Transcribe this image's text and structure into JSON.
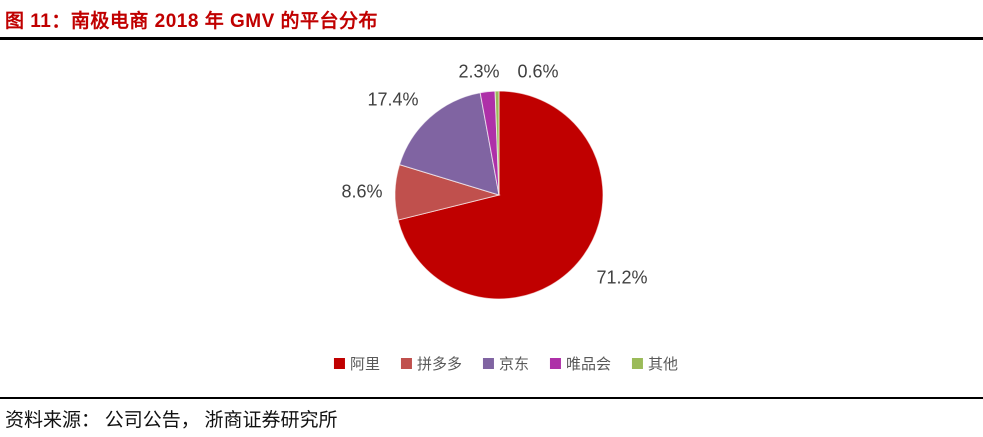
{
  "header": {
    "title": "图 11：南极电商 2018 年 GMV 的平台分布"
  },
  "chart_data": {
    "type": "pie",
    "title": "南极电商 2018 年 GMV 的平台分布",
    "categories": [
      "阿里",
      "拼多多",
      "京东",
      "唯品会",
      "其他"
    ],
    "values": [
      71.2,
      8.6,
      17.4,
      2.3,
      0.6
    ],
    "unit": "%",
    "labels": [
      "71.2%",
      "8.6%",
      "17.4%",
      "2.3%",
      "0.6%"
    ],
    "colors": [
      "#C00000",
      "#C0504D",
      "#8064A2",
      "#AE30A8",
      "#9BBB59"
    ],
    "start_angle_deg": 0,
    "direction": "clockwise",
    "legend_position": "bottom",
    "label_color": "#404040",
    "legend_text_color": "#595959",
    "accent_color": "#C00000"
  },
  "footer": {
    "source": "资料来源： 公司公告， 浙商证券研究所"
  }
}
